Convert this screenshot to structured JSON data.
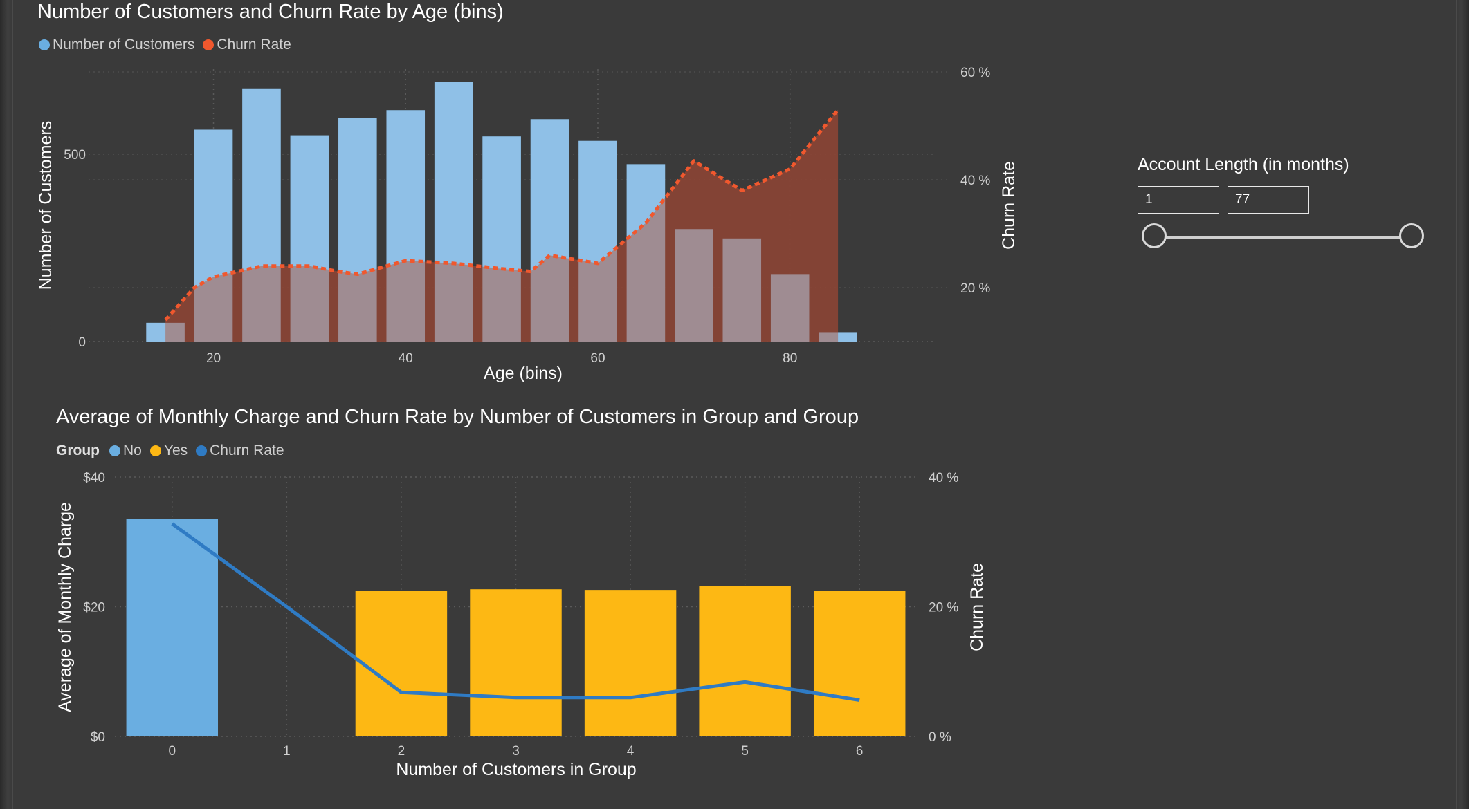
{
  "colors": {
    "background": "#3a3a3a",
    "customers_bar": "#6aaee1",
    "churn_line_top": "#f0582e",
    "churn_area_top": "#8c4535",
    "group_no": "#6aaee1",
    "group_yes": "#fdb814",
    "churn_line_bottom": "#2f7bc4"
  },
  "chart_data": [
    {
      "type": "bar",
      "title": "Number of Customers and Churn Rate by Age (bins)",
      "xlabel": "Age (bins)",
      "ylabel": "Number of Customers",
      "y2label": "Churn Rate",
      "legend": {
        "placement": "top-left",
        "items": [
          {
            "label": "Number of Customers",
            "color": "#6aaee1"
          },
          {
            "label": "Churn Rate",
            "color": "#f0582e"
          }
        ]
      },
      "xlim": [
        7,
        95
      ],
      "ylim": [
        0,
        800
      ],
      "y2lim": [
        10,
        60
      ],
      "x_ticks": [
        20,
        40,
        60,
        80
      ],
      "y_ticks": [
        0,
        500
      ],
      "y_tick_labels": [
        "0",
        "500"
      ],
      "y2_ticks": [
        20,
        40,
        60
      ],
      "y2_tick_labels": [
        "20 %",
        "40 %",
        "60 %"
      ],
      "grid": true,
      "series": [
        {
          "name": "Number of Customers",
          "kind": "bar",
          "x": [
            15,
            20,
            25,
            30,
            35,
            40,
            45,
            50,
            55,
            60,
            65,
            70,
            75,
            80,
            85
          ],
          "values": [
            50,
            565,
            675,
            550,
            597,
            617,
            693,
            547,
            593,
            535,
            473,
            300,
            275,
            180,
            25
          ]
        },
        {
          "name": "Churn Rate",
          "kind": "area-line",
          "x": [
            15,
            18,
            20,
            25,
            30,
            33,
            35,
            40,
            45,
            50,
            53,
            55,
            60,
            65,
            70,
            75,
            80,
            85
          ],
          "values": [
            14,
            20,
            22,
            24,
            24,
            23,
            22.5,
            25,
            24.5,
            23.5,
            23,
            26,
            24.5,
            32,
            43.5,
            38,
            42,
            53
          ]
        }
      ]
    },
    {
      "type": "bar",
      "title": "Average of Monthly Charge and Churn Rate by Number of Customers in Group and Group",
      "xlabel": "Number of Customers in Group",
      "ylabel": "Average of Monthly Charge",
      "y2label": "Churn Rate",
      "legend": {
        "placement": "top-left",
        "title": "Group",
        "items": [
          {
            "label": "No",
            "color": "#6aaee1"
          },
          {
            "label": "Yes",
            "color": "#fdb814"
          },
          {
            "label": "Churn Rate",
            "color": "#2f7bc4"
          }
        ]
      },
      "categories": [
        "0",
        "1",
        "2",
        "3",
        "4",
        "5",
        "6"
      ],
      "ylim": [
        0,
        40
      ],
      "y2lim": [
        0,
        40
      ],
      "y_ticks": [
        0,
        20,
        40
      ],
      "y_tick_labels": [
        "$0",
        "$20",
        "$40"
      ],
      "y2_ticks": [
        0,
        20,
        40
      ],
      "y2_tick_labels": [
        "0 %",
        "20 %",
        "40 %"
      ],
      "grid": true,
      "bars": [
        {
          "category": "0",
          "group": "No",
          "value": 33.5
        },
        {
          "category": "2",
          "group": "Yes",
          "value": 22.5
        },
        {
          "category": "3",
          "group": "Yes",
          "value": 22.7
        },
        {
          "category": "4",
          "group": "Yes",
          "value": 22.6
        },
        {
          "category": "5",
          "group": "Yes",
          "value": 23.2
        },
        {
          "category": "6",
          "group": "Yes",
          "value": 22.5
        }
      ],
      "series": [
        {
          "name": "Churn Rate",
          "kind": "line",
          "values": [
            32.8,
            20,
            6.8,
            6,
            6,
            8.4,
            5.6
          ]
        }
      ]
    }
  ],
  "slicer": {
    "title": "Account Length (in months)",
    "min_value": "1",
    "max_value": "77",
    "range_min": 1,
    "range_max": 77,
    "selected_min": 1,
    "selected_max": 77
  }
}
